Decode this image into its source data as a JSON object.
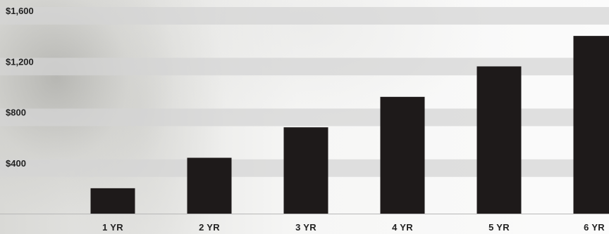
{
  "colors": {
    "bar": "#1e1a1a",
    "band": "#d4d4d4",
    "baseline": "#b8b8b8",
    "text": "#222222"
  },
  "chart_data": {
    "type": "bar",
    "title": "",
    "xlabel": "",
    "ylabel": "",
    "categories": [
      "1 YR",
      "2 YR",
      "3 YR",
      "4 YR",
      "5 YR",
      "6 YR"
    ],
    "values": [
      200,
      440,
      680,
      920,
      1160,
      1400
    ],
    "ylim": [
      0,
      1600
    ],
    "y_ticks": [
      {
        "value": 400,
        "label": "$400"
      },
      {
        "value": 800,
        "label": "$800"
      },
      {
        "value": 1200,
        "label": "$1,200"
      },
      {
        "value": 1600,
        "label": "$1,600"
      }
    ],
    "grid": "horizontal bands",
    "legend": "none"
  }
}
